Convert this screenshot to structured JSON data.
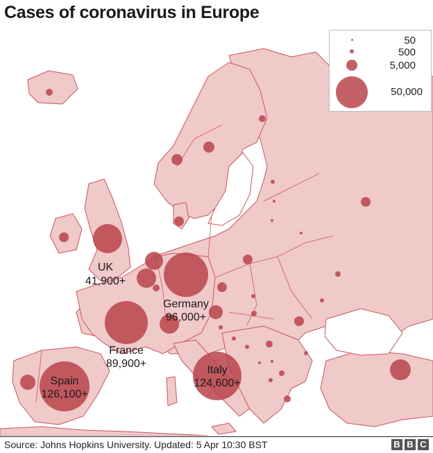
{
  "title": "Cases of coronavirus in Europe",
  "source": "Source: Johns Hopkins University. Updated: 5 Apr 10:30 BST",
  "logo": [
    "B",
    "B",
    "C"
  ],
  "colors": {
    "land": "#f0c9c9",
    "border": "#c9555c",
    "bubble": "#b8444b",
    "sea": "#ffffff"
  },
  "legend": {
    "items": [
      {
        "label": "50"
      },
      {
        "label": "500"
      },
      {
        "label": "5,000"
      },
      {
        "label": "50,000"
      }
    ]
  },
  "labels": {
    "uk": {
      "name": "UK",
      "value": "41,900+"
    },
    "germany": {
      "name": "Germany",
      "value": "96,000+"
    },
    "france": {
      "name": "France",
      "value": "89,900+"
    },
    "spain": {
      "name": "Spain",
      "value": "126,100+"
    },
    "italy": {
      "name": "Italy",
      "value": "124,600+"
    }
  }
}
